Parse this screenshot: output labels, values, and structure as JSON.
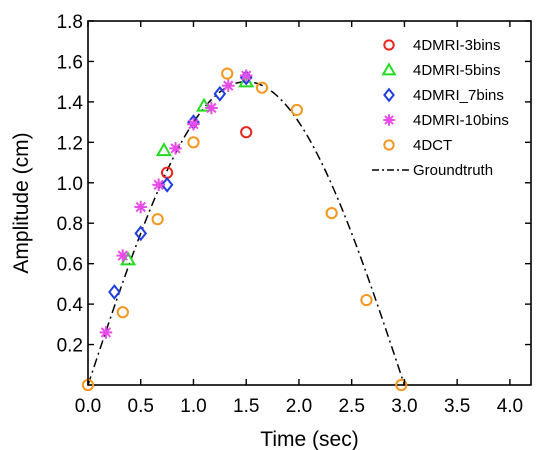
{
  "chart_data": {
    "type": "scatter",
    "title": "",
    "xlabel": "Time (sec)",
    "ylabel": "Amplitude (cm)",
    "xlim": [
      0.0,
      4.2
    ],
    "ylim": [
      0.0,
      1.8
    ],
    "xticks": [
      "0.0",
      "0.5",
      "1.0",
      "1.5",
      "2.0",
      "2.5",
      "3.0",
      "3.5",
      "4.0"
    ],
    "yticks": [
      "0.2",
      "0.4",
      "0.6",
      "0.8",
      "1.0",
      "1.2",
      "1.4",
      "1.6",
      "1.8"
    ],
    "grid": false,
    "legend_position": "top-right",
    "series": [
      {
        "name": "4DMRI-3bins",
        "marker": "circle",
        "color": "#e8251f",
        "points": [
          [
            0.75,
            1.05
          ],
          [
            1.5,
            1.25
          ]
        ]
      },
      {
        "name": "4DMRI-5bins",
        "marker": "triangle",
        "color": "#22dd22",
        "points": [
          [
            0.38,
            0.62
          ],
          [
            0.72,
            1.16
          ],
          [
            1.1,
            1.38
          ],
          [
            1.5,
            1.5
          ]
        ]
      },
      {
        "name": "4DMRI_7bins",
        "marker": "diamond",
        "color": "#1f3fe0",
        "points": [
          [
            0.25,
            0.46
          ],
          [
            0.5,
            0.75
          ],
          [
            0.75,
            0.99
          ],
          [
            1.0,
            1.3
          ],
          [
            1.25,
            1.44
          ],
          [
            1.5,
            1.52
          ]
        ]
      },
      {
        "name": "4DMRI-10bins",
        "marker": "asterisk",
        "color": "#e84ce8",
        "points": [
          [
            0.17,
            0.26
          ],
          [
            0.33,
            0.64
          ],
          [
            0.5,
            0.88
          ],
          [
            0.67,
            0.99
          ],
          [
            0.83,
            1.17
          ],
          [
            1.0,
            1.29
          ],
          [
            1.17,
            1.37
          ],
          [
            1.33,
            1.48
          ],
          [
            1.5,
            1.53
          ]
        ]
      },
      {
        "name": "4DCT",
        "marker": "circle",
        "color": "#f5961e",
        "points": [
          [
            0.0,
            0.0
          ],
          [
            0.33,
            0.36
          ],
          [
            0.66,
            0.82
          ],
          [
            1.0,
            1.2
          ],
          [
            1.32,
            1.54
          ],
          [
            1.65,
            1.47
          ],
          [
            1.98,
            1.36
          ],
          [
            2.31,
            0.85
          ],
          [
            2.64,
            0.42
          ],
          [
            2.97,
            0.0
          ]
        ]
      },
      {
        "name": "Groundtruth",
        "marker": "line",
        "color": "#000000",
        "line_style": "dash-dot",
        "function": "1.5*sin(pi*t/3)",
        "x_range": [
          0.0,
          3.0
        ]
      }
    ]
  }
}
